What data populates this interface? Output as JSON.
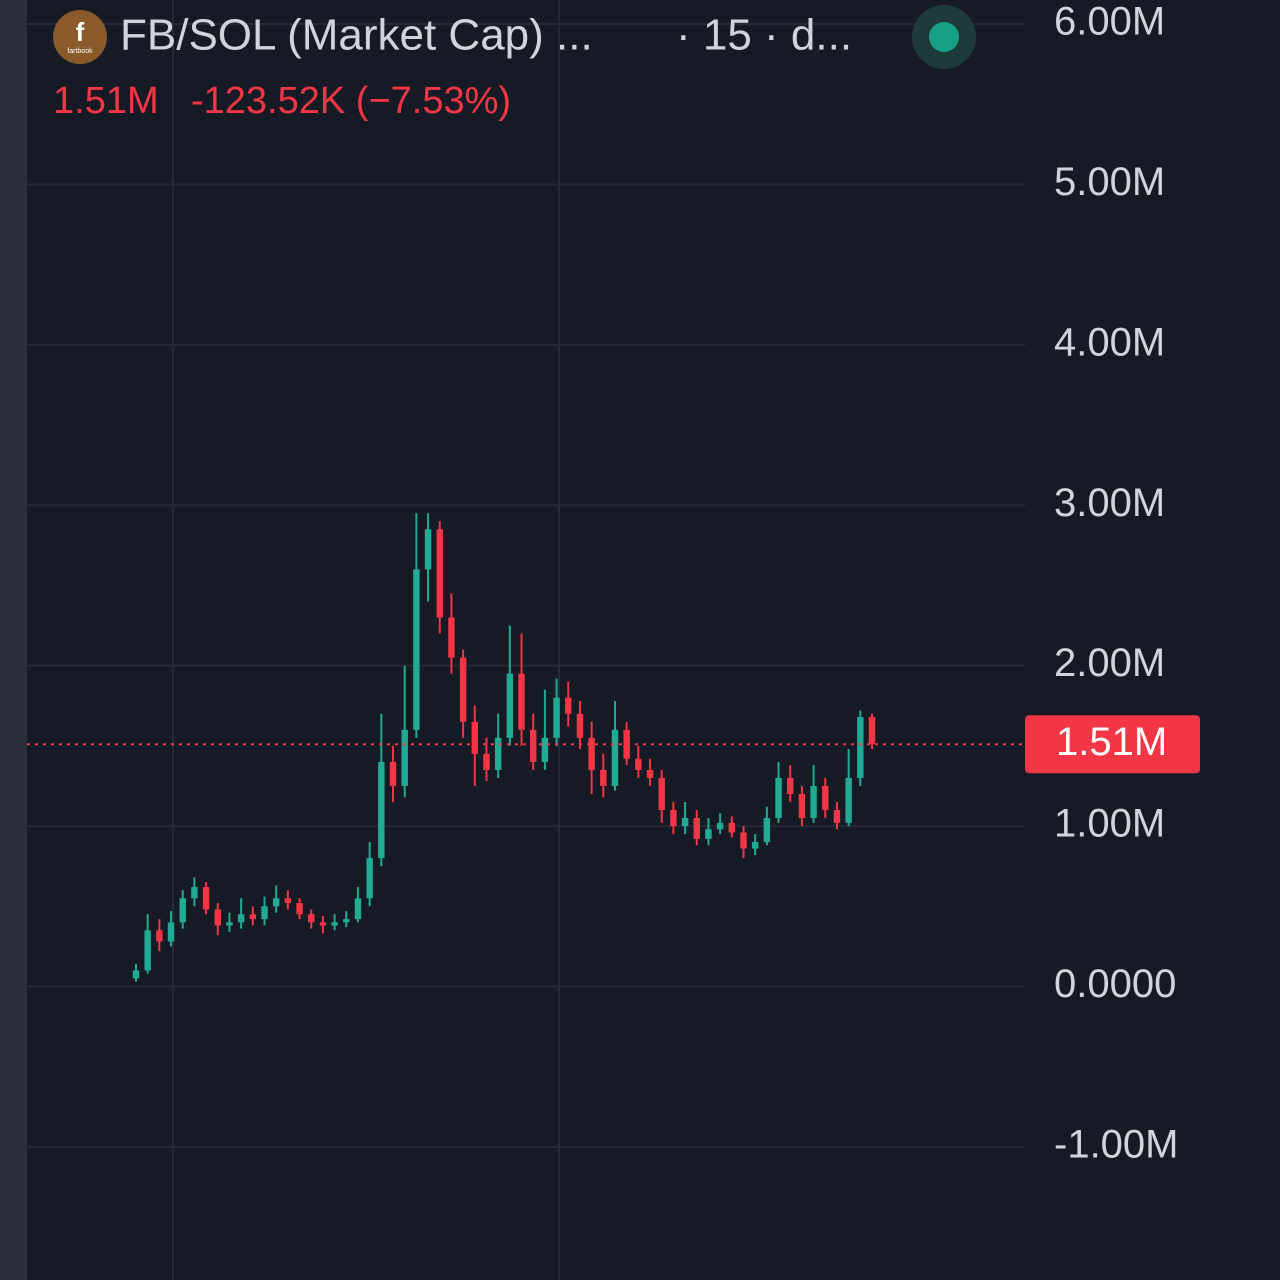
{
  "logo": {
    "letter": "f",
    "caption": "fartbook"
  },
  "chart_data": {
    "type": "candlestick",
    "title": "FB/SOL (Market Cap) ...",
    "interval": "· 15 · d...",
    "price": "1.51M",
    "change": "-123.52K (−7.53%)",
    "up_color": "#22ab94",
    "down_color": "#f23645",
    "grid": true,
    "ylim": [
      -1.83,
      6.15
    ],
    "yticks": [
      {
        "value": 6,
        "label": "6.00M"
      },
      {
        "value": 5,
        "label": "5.00M"
      },
      {
        "value": 4,
        "label": "4.00M"
      },
      {
        "value": 3,
        "label": "3.00M"
      },
      {
        "value": 2,
        "label": "2.00M"
      },
      {
        "value": 1,
        "label": "1.00M"
      },
      {
        "value": 0,
        "label": "0.0000"
      },
      {
        "value": -1,
        "label": "-1.00M"
      }
    ],
    "last_price": {
      "value": 1.51,
      "label": "1.51M"
    },
    "open": [
      0.05,
      0.1,
      0.35,
      0.28,
      0.4,
      0.55,
      0.62,
      0.48,
      0.38,
      0.4,
      0.45,
      0.42,
      0.5,
      0.55,
      0.52,
      0.45,
      0.4,
      0.38,
      0.4,
      0.42,
      0.55,
      0.8,
      1.4,
      1.25,
      1.6,
      2.6,
      2.85,
      2.3,
      2.05,
      1.65,
      1.45,
      1.35,
      1.55,
      1.95,
      1.6,
      1.4,
      1.55,
      1.8,
      1.7,
      1.55,
      1.35,
      1.25,
      1.6,
      1.42,
      1.35,
      1.3,
      1.1,
      1.0,
      1.05,
      0.92,
      0.98,
      1.02,
      0.96,
      0.86,
      0.9,
      1.05,
      1.3,
      1.2,
      1.05,
      1.25,
      1.1,
      1.02,
      1.3,
      1.68
    ],
    "high": [
      0.14,
      0.45,
      0.42,
      0.47,
      0.6,
      0.68,
      0.65,
      0.52,
      0.46,
      0.55,
      0.5,
      0.56,
      0.63,
      0.6,
      0.55,
      0.48,
      0.44,
      0.45,
      0.47,
      0.62,
      0.9,
      1.7,
      1.5,
      2.0,
      2.95,
      2.95,
      2.9,
      2.45,
      2.1,
      1.75,
      1.55,
      1.7,
      2.25,
      2.2,
      1.7,
      1.85,
      1.92,
      1.9,
      1.78,
      1.65,
      1.45,
      1.78,
      1.65,
      1.5,
      1.42,
      1.35,
      1.15,
      1.15,
      1.1,
      1.05,
      1.08,
      1.06,
      1.0,
      0.95,
      1.12,
      1.4,
      1.38,
      1.25,
      1.38,
      1.3,
      1.15,
      1.48,
      1.72,
      1.7
    ],
    "low": [
      0.03,
      0.08,
      0.22,
      0.25,
      0.36,
      0.5,
      0.45,
      0.32,
      0.34,
      0.36,
      0.38,
      0.38,
      0.46,
      0.48,
      0.42,
      0.36,
      0.33,
      0.35,
      0.37,
      0.4,
      0.5,
      0.75,
      1.15,
      1.18,
      1.55,
      2.4,
      2.2,
      1.95,
      1.55,
      1.25,
      1.28,
      1.3,
      1.5,
      1.5,
      1.35,
      1.35,
      1.5,
      1.62,
      1.48,
      1.2,
      1.18,
      1.22,
      1.38,
      1.3,
      1.25,
      1.02,
      0.95,
      0.95,
      0.88,
      0.88,
      0.95,
      0.93,
      0.8,
      0.82,
      0.88,
      1.02,
      1.15,
      1.0,
      1.02,
      1.05,
      0.98,
      1.0,
      1.25,
      1.48
    ],
    "close": [
      0.1,
      0.35,
      0.28,
      0.4,
      0.55,
      0.62,
      0.48,
      0.38,
      0.4,
      0.45,
      0.42,
      0.5,
      0.55,
      0.52,
      0.45,
      0.4,
      0.38,
      0.4,
      0.42,
      0.55,
      0.8,
      1.4,
      1.25,
      1.6,
      2.6,
      2.85,
      2.3,
      2.05,
      1.65,
      1.45,
      1.35,
      1.55,
      1.95,
      1.6,
      1.4,
      1.55,
      1.8,
      1.7,
      1.55,
      1.35,
      1.25,
      1.6,
      1.42,
      1.35,
      1.3,
      1.1,
      1.0,
      1.05,
      0.92,
      0.98,
      1.02,
      0.96,
      0.86,
      0.9,
      1.05,
      1.3,
      1.2,
      1.05,
      1.25,
      1.1,
      1.02,
      1.3,
      1.68,
      1.51
    ]
  }
}
